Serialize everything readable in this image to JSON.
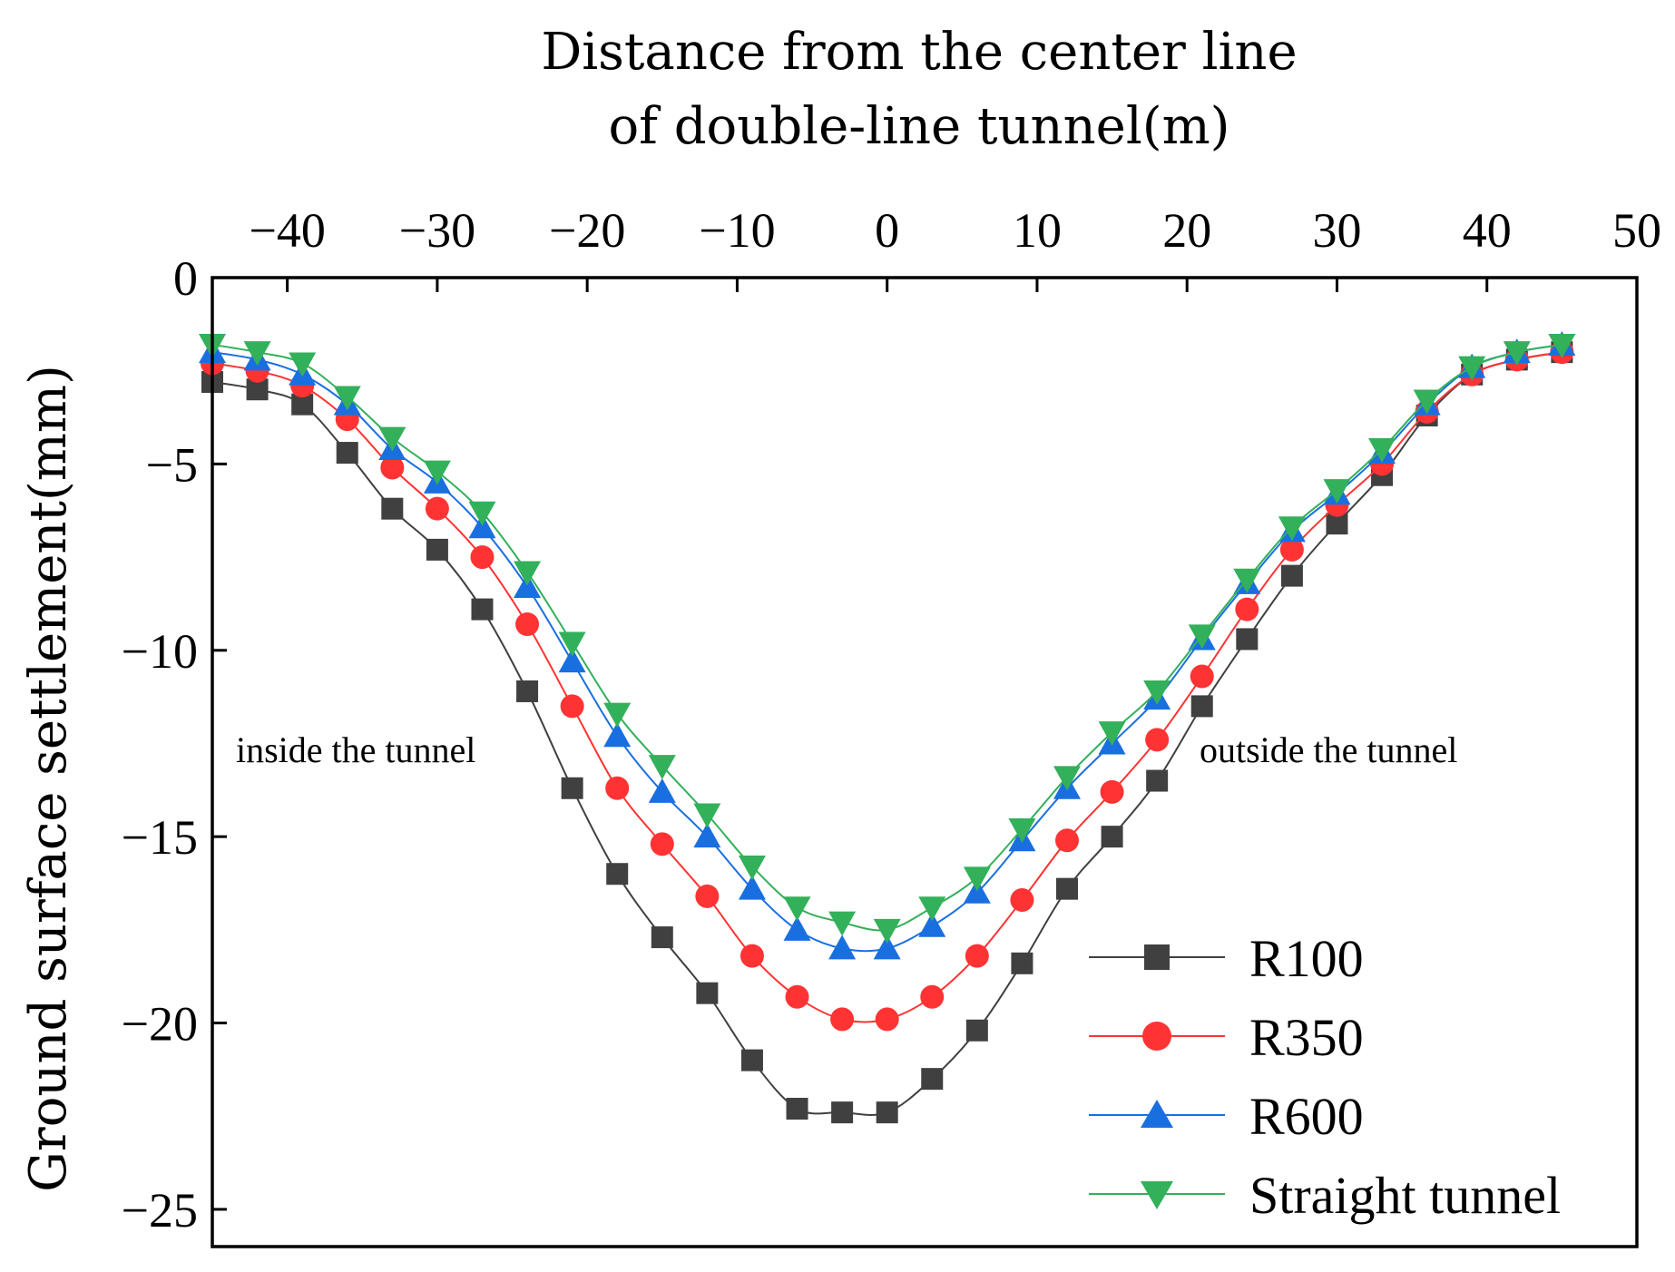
{
  "chart_data": {
    "type": "line",
    "title": "",
    "xlabel_lines": [
      "Distance from the center line",
      "of double-line tunnel(m)"
    ],
    "ylabel": "Ground surface settlement(mm)",
    "xlim": [
      -45,
      50
    ],
    "ylim": [
      -26,
      0
    ],
    "xticks": [
      -40,
      -30,
      -20,
      -10,
      0,
      10,
      20,
      30,
      40,
      50
    ],
    "xtick_labels": [
      "−40",
      "−30",
      "−20",
      "−10",
      "0",
      "10",
      "20",
      "30",
      "40",
      "50"
    ],
    "yticks": [
      0,
      -5,
      -10,
      -15,
      -20,
      -25
    ],
    "ytick_labels": [
      "0",
      "−5",
      "−10",
      "−15",
      "−20",
      "−25"
    ],
    "x_axis_position": "top",
    "grid": false,
    "legend_position": "bottom-right",
    "annotations": [
      {
        "text": "inside the tunnel",
        "x": -43.5,
        "y": -12.6
      },
      {
        "text": "outside the tunnel",
        "x": 21.5,
        "y": -12.6
      }
    ],
    "x": [
      -45,
      -42,
      -39,
      -36,
      -33,
      -30,
      -27,
      -24,
      -21,
      -18,
      -15,
      -12,
      -9,
      -6,
      -3,
      0,
      3,
      6,
      9,
      12,
      15,
      18,
      21,
      24,
      27,
      30,
      33,
      36,
      39,
      42,
      45
    ],
    "series": [
      {
        "name": "R100",
        "color": "#404040",
        "marker": "square",
        "values": [
          -2.8,
          -3.0,
          -3.4,
          -4.7,
          -6.2,
          -7.3,
          -8.9,
          -11.1,
          -13.7,
          -16.0,
          -17.7,
          -19.2,
          -21.0,
          -22.3,
          -22.4,
          -22.4,
          -21.5,
          -20.2,
          -18.4,
          -16.4,
          -15.0,
          -13.5,
          -11.5,
          -9.7,
          -8.0,
          -6.6,
          -5.3,
          -3.7,
          -2.6,
          -2.2,
          -2.0
        ]
      },
      {
        "name": "R350",
        "color": "#ff3333",
        "marker": "circle",
        "values": [
          -2.3,
          -2.5,
          -2.9,
          -3.8,
          -5.1,
          -6.2,
          -7.5,
          -9.3,
          -11.5,
          -13.7,
          -15.2,
          -16.6,
          -18.2,
          -19.3,
          -19.9,
          -19.9,
          -19.3,
          -18.2,
          -16.7,
          -15.1,
          -13.8,
          -12.4,
          -10.7,
          -8.9,
          -7.3,
          -6.1,
          -5.0,
          -3.6,
          -2.6,
          -2.2,
          -2.0
        ]
      },
      {
        "name": "R600",
        "color": "#1a6fe0",
        "marker": "triangle-up",
        "values": [
          -2.0,
          -2.2,
          -2.6,
          -3.4,
          -4.6,
          -5.5,
          -6.7,
          -8.3,
          -10.3,
          -12.3,
          -13.8,
          -15.0,
          -16.4,
          -17.5,
          -18.0,
          -18.0,
          -17.4,
          -16.5,
          -15.1,
          -13.7,
          -12.5,
          -11.3,
          -9.7,
          -8.2,
          -6.8,
          -5.8,
          -4.7,
          -3.4,
          -2.4,
          -2.0,
          -1.8
        ]
      },
      {
        "name": "Straight tunnel",
        "color": "#33b05a",
        "marker": "triangle-down",
        "values": [
          -1.8,
          -2.0,
          -2.3,
          -3.2,
          -4.3,
          -5.2,
          -6.3,
          -7.9,
          -9.8,
          -11.7,
          -13.1,
          -14.4,
          -15.8,
          -16.9,
          -17.3,
          -17.5,
          -16.9,
          -16.1,
          -14.8,
          -13.4,
          -12.2,
          -11.1,
          -9.6,
          -8.1,
          -6.7,
          -5.7,
          -4.6,
          -3.3,
          -2.4,
          -2.0,
          -1.8
        ]
      }
    ]
  }
}
